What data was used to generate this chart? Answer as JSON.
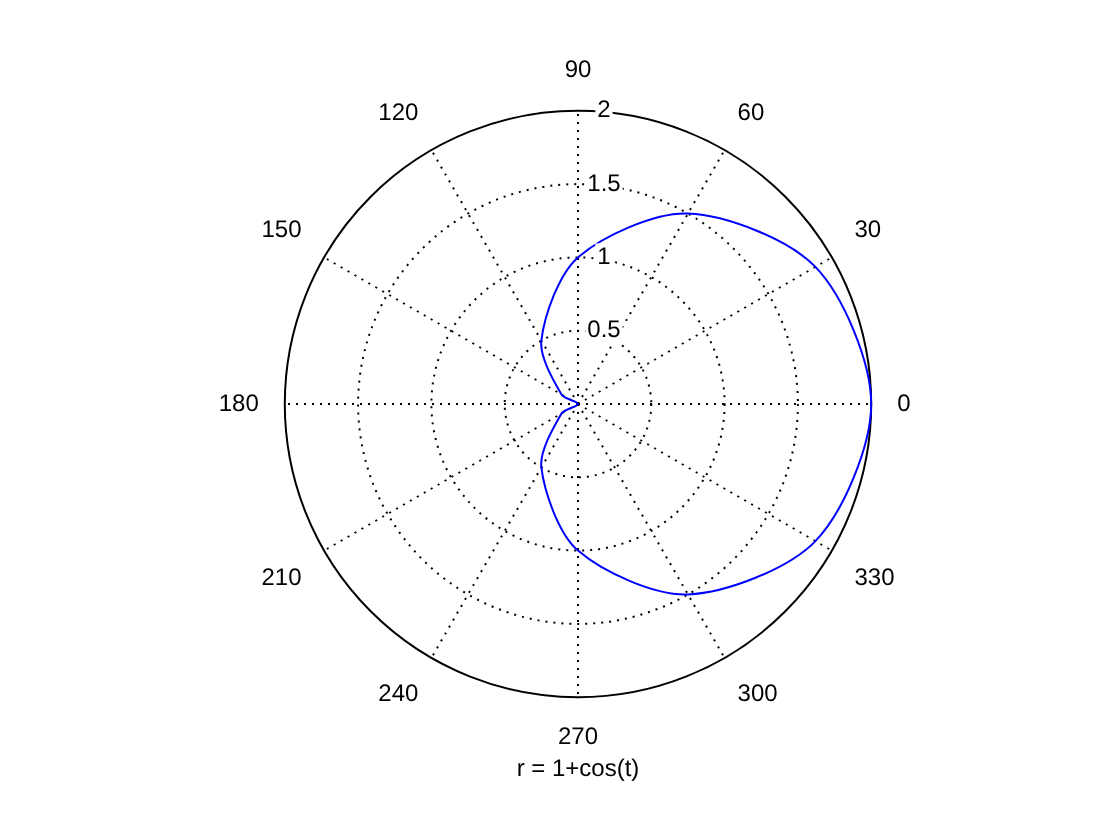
{
  "chart_data": {
    "type": "radar",
    "xlabel": "r = 1+cos(t)",
    "categories": [
      "90",
      "60",
      "30",
      "0",
      "330",
      "300",
      "270",
      "240",
      "210",
      "180",
      "150",
      "120"
    ],
    "series": [
      {
        "color": "#0000ff",
        "values": [
          1,
          1.5,
          1.87,
          2,
          1.87,
          1.5,
          1,
          0.5,
          0.13,
          0,
          0.13,
          0.5
        ]
      }
    ],
    "ylim": [
      0,
      2
    ],
    "yticks": [
      0.5,
      1,
      1.5,
      2
    ],
    "grid": true,
    "marker": "none"
  }
}
